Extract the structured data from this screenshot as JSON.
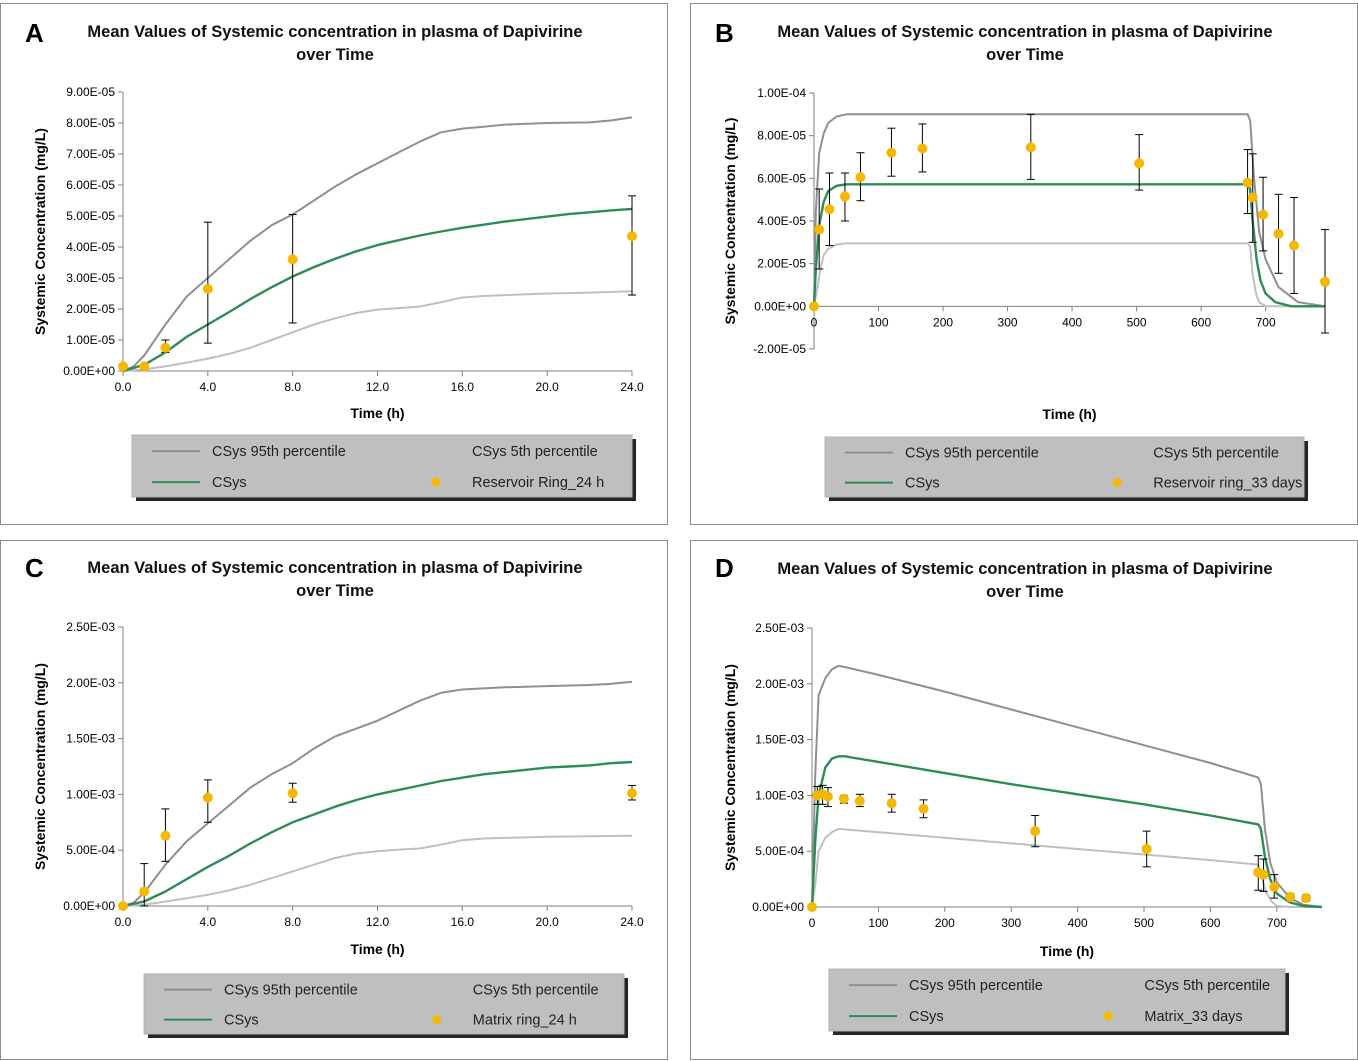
{
  "colors": {
    "p95": "#8f8f8f",
    "p5": "#bfbfbf",
    "csys": "#2e8b57",
    "obs": "#f5b800",
    "legend_bg": "#bfbfbf"
  },
  "chart_data": [
    {
      "panel": "A",
      "type": "line",
      "title": "Mean Values of Systemic concentration in plasma of Dapivirine over Time",
      "title_lines": [
        "Mean Values of Systemic concentration in plasma of Dapivirine",
        "over Time"
      ],
      "xlabel": "Time (h)",
      "ylabel": "Systemic Concentration (mg/L)",
      "xlim": [
        0,
        24
      ],
      "ylim": [
        0,
        9e-05
      ],
      "xticks": [
        0,
        4,
        8,
        12,
        16,
        20,
        24
      ],
      "xtick_labels": [
        "0.0",
        "4.0",
        "8.0",
        "12.0",
        "16.0",
        "20.0",
        "24.0"
      ],
      "yticks": [
        0,
        1e-05,
        2e-05,
        3e-05,
        4e-05,
        5e-05,
        6e-05,
        7e-05,
        8e-05,
        9e-05
      ],
      "ytick_labels": [
        "0.00E+00",
        "1.00E-05",
        "2.00E-05",
        "3.00E-05",
        "4.00E-05",
        "5.00E-05",
        "6.00E-05",
        "7.00E-05",
        "8.00E-05",
        "9.00E-05"
      ],
      "legend": [
        "CSys 95th percentile",
        "CSys 5th percentile",
        "CSys",
        "Reservoir Ring_24 h"
      ],
      "series": [
        {
          "name": "CSys 95th percentile",
          "x": [
            0,
            0.5,
            1,
            2,
            3,
            4,
            5,
            6,
            7,
            8,
            9,
            10,
            11,
            12,
            13,
            14,
            15,
            16,
            17,
            18,
            20,
            22,
            23,
            24
          ],
          "y": [
            0,
            1.5e-06,
            5e-06,
            1.5e-05,
            2.4e-05,
            3e-05,
            3.6e-05,
            4.2e-05,
            4.7e-05,
            5.05e-05,
            5.5e-05,
            5.95e-05,
            6.35e-05,
            6.7e-05,
            7.05e-05,
            7.4e-05,
            7.7e-05,
            7.82e-05,
            7.88e-05,
            7.95e-05,
            8e-05,
            8.02e-05,
            8.08e-05,
            8.18e-05
          ]
        },
        {
          "name": "CSys 5th percentile",
          "x": [
            0,
            1,
            2,
            3,
            4,
            5,
            6,
            7,
            8,
            9,
            10,
            11,
            12,
            13,
            14,
            15,
            16,
            17,
            18,
            20,
            22,
            24
          ],
          "y": [
            0,
            5e-07,
            1.5e-06,
            2.7e-06,
            4e-06,
            5.5e-06,
            7.5e-06,
            1e-05,
            1.25e-05,
            1.5e-05,
            1.7e-05,
            1.87e-05,
            1.98e-05,
            2.03e-05,
            2.08e-05,
            2.22e-05,
            2.37e-05,
            2.42e-05,
            2.45e-05,
            2.5e-05,
            2.53e-05,
            2.57e-05
          ]
        },
        {
          "name": "CSys",
          "x": [
            0,
            1,
            2,
            3,
            4,
            5,
            6,
            7,
            8,
            9,
            10,
            11,
            12,
            13,
            14,
            15,
            16,
            17,
            18,
            19,
            20,
            21,
            22,
            23,
            24
          ],
          "y": [
            0,
            2e-06,
            6e-06,
            1.1e-05,
            1.5e-05,
            1.9e-05,
            2.32e-05,
            2.7e-05,
            3.05e-05,
            3.35e-05,
            3.62e-05,
            3.86e-05,
            4.06e-05,
            4.22e-05,
            4.37e-05,
            4.5e-05,
            4.62e-05,
            4.72e-05,
            4.82e-05,
            4.9e-05,
            4.98e-05,
            5.06e-05,
            5.12e-05,
            5.18e-05,
            5.23e-05
          ]
        },
        {
          "name": "Reservoir Ring_24 h",
          "mode": "scatter",
          "x": [
            0,
            1,
            2,
            4,
            8,
            24
          ],
          "y": [
            1.5e-06,
            1.5e-06,
            7.5e-06,
            2.65e-05,
            3.6e-05,
            4.35e-05
          ],
          "err_low": [
            1.5e-06,
            1.5e-06,
            6e-06,
            9e-06,
            1.55e-05,
            2.45e-05
          ],
          "err_high": [
            1.5e-06,
            1.5e-06,
            1e-05,
            4.8e-05,
            5.05e-05,
            5.65e-05
          ]
        }
      ]
    },
    {
      "panel": "B",
      "type": "line",
      "title": "Mean Values of Systemic concentration in plasma of Dapivirine over Time",
      "title_lines": [
        "Mean Values of Systemic concentration in plasma of Dapivirine",
        "over Time"
      ],
      "xlabel": "Time (h)",
      "ylabel": "Systemic Concentration (mg/L)",
      "xlim": [
        0,
        792
      ],
      "ylim": [
        -2e-05,
        0.0001
      ],
      "xticks": [
        0,
        100,
        200,
        300,
        400,
        500,
        600,
        700
      ],
      "xtick_labels": [
        "0",
        "100",
        "200",
        "300",
        "400",
        "500",
        "600",
        "700"
      ],
      "yticks": [
        -2e-05,
        0,
        2e-05,
        4e-05,
        6e-05,
        8e-05,
        0.0001
      ],
      "ytick_labels": [
        "-2.00E-05",
        "0.00E+00",
        "2.00E-05",
        "4.00E-05",
        "6.00E-05",
        "8.00E-05",
        "1.00E-04"
      ],
      "legend": [
        "CSys 95th percentile",
        "CSys 5th percentile",
        "CSys",
        "Reservoir ring_33 days"
      ],
      "series": [
        {
          "name": "CSys 95th percentile",
          "x": [
            0,
            3,
            8,
            15,
            22,
            35,
            50,
            80,
            200,
            672,
            676,
            682,
            690,
            700,
            720,
            750,
            792
          ],
          "y": [
            0,
            4.5e-05,
            7.2e-05,
            8.1e-05,
            8.6e-05,
            8.9e-05,
            9e-05,
            9e-05,
            9e-05,
            9e-05,
            8.7e-05,
            6e-05,
            3.5e-05,
            2.2e-05,
            9e-06,
            2e-06,
            0
          ]
        },
        {
          "name": "CSys 5th percentile",
          "x": [
            0,
            5,
            10,
            15,
            22,
            35,
            50,
            100,
            672,
            676,
            680,
            685,
            690,
            700,
            792
          ],
          "y": [
            0,
            8e-06,
            1.8e-05,
            2.4e-05,
            2.7e-05,
            2.9e-05,
            2.95e-05,
            2.95e-05,
            2.95e-05,
            2.8e-05,
            1.5e-05,
            6e-06,
            2e-06,
            0,
            0
          ]
        },
        {
          "name": "CSys",
          "x": [
            0,
            3,
            8,
            15,
            22,
            35,
            50,
            80,
            200,
            672,
            676,
            680,
            686,
            692,
            700,
            715,
            740,
            792
          ],
          "y": [
            0,
            1.8e-05,
            3.8e-05,
            4.9e-05,
            5.4e-05,
            5.65e-05,
            5.72e-05,
            5.72e-05,
            5.72e-05,
            5.72e-05,
            5.5e-05,
            4e-05,
            2.2e-05,
            1.2e-05,
            6e-06,
            2e-06,
            0,
            0
          ]
        },
        {
          "name": "Reservoir ring_33 days",
          "mode": "scatter",
          "x": [
            0,
            8,
            24,
            48,
            72,
            120,
            168,
            336,
            504,
            672,
            680,
            696,
            720,
            744,
            792
          ],
          "y": [
            0,
            3.6e-05,
            4.55e-05,
            5.15e-05,
            6.05e-05,
            7.2e-05,
            7.4e-05,
            7.45e-05,
            6.7e-05,
            5.8e-05,
            5.1e-05,
            4.3e-05,
            3.4e-05,
            2.85e-05,
            1.15e-05
          ],
          "err_low": [
            0,
            1.75e-05,
            2.85e-05,
            4e-05,
            4.95e-05,
            6.1e-05,
            6.3e-05,
            5.95e-05,
            5.45e-05,
            4.35e-05,
            3e-05,
            2.6e-05,
            1.55e-05,
            6e-06,
            -1.25e-05
          ],
          "err_high": [
            0,
            5.5e-05,
            6.25e-05,
            6.25e-05,
            7.2e-05,
            8.35e-05,
            8.55e-05,
            9e-05,
            8.05e-05,
            7.35e-05,
            7.15e-05,
            6.05e-05,
            5.25e-05,
            5.1e-05,
            3.6e-05
          ]
        }
      ]
    },
    {
      "panel": "C",
      "type": "line",
      "title": "Mean Values of Systemic concentration in plasma of Dapivirine over Time",
      "title_lines": [
        "Mean Values of Systemic concentration in plasma of Dapivirine",
        "over Time"
      ],
      "xlabel": "Time (h)",
      "ylabel": "Systemic Concentration (mg/L)",
      "xlim": [
        0,
        24
      ],
      "ylim": [
        0,
        0.0025
      ],
      "xticks": [
        0,
        4,
        8,
        12,
        16,
        20,
        24
      ],
      "xtick_labels": [
        "0.0",
        "4.0",
        "8.0",
        "12.0",
        "16.0",
        "20.0",
        "24.0"
      ],
      "yticks": [
        0,
        0.0005,
        0.001,
        0.0015,
        0.002,
        0.0025
      ],
      "ytick_labels": [
        "0.00E+00",
        "5.00E-04",
        "1.00E-03",
        "1.50E-03",
        "2.00E-03",
        "2.50E-03"
      ],
      "legend": [
        "CSys 95th percentile",
        "CSys 5th percentile",
        "CSys",
        "Matrix ring_24 h"
      ],
      "series": [
        {
          "name": "CSys 95th percentile",
          "x": [
            0,
            0.5,
            1,
            2,
            3,
            4,
            5,
            6,
            7,
            8,
            9,
            10,
            11,
            12,
            13,
            14,
            15,
            16,
            17,
            18,
            20,
            22,
            23,
            24
          ],
          "y": [
            0,
            3e-05,
            0.00012,
            0.00037,
            0.00058,
            0.00074,
            0.0009,
            0.00106,
            0.00118,
            0.00128,
            0.00141,
            0.00152,
            0.00159,
            0.00166,
            0.00175,
            0.00184,
            0.00191,
            0.00194,
            0.00195,
            0.00196,
            0.00197,
            0.00198,
            0.00199,
            0.00201
          ]
        },
        {
          "name": "CSys 5th percentile",
          "x": [
            0,
            1,
            2,
            3,
            4,
            5,
            6,
            7,
            8,
            9,
            10,
            11,
            12,
            13,
            14,
            15,
            16,
            17,
            18,
            20,
            22,
            24
          ],
          "y": [
            0,
            1.2e-05,
            4e-05,
            7e-05,
            0.0001,
            0.00014,
            0.00019,
            0.00025,
            0.00031,
            0.00037,
            0.00043,
            0.00047,
            0.00049,
            0.000505,
            0.000515,
            0.00055,
            0.00059,
            0.000605,
            0.00061,
            0.00062,
            0.000625,
            0.00063
          ]
        },
        {
          "name": "CSys",
          "x": [
            0,
            1,
            2,
            3,
            4,
            5,
            6,
            7,
            8,
            9,
            10,
            11,
            12,
            13,
            14,
            15,
            16,
            17,
            18,
            19,
            20,
            21,
            22,
            23,
            24
          ],
          "y": [
            0,
            4e-05,
            0.00013,
            0.00024,
            0.00035,
            0.00045,
            0.00056,
            0.00066,
            0.00075,
            0.00082,
            0.00089,
            0.00095,
            0.001,
            0.00104,
            0.00108,
            0.00112,
            0.00115,
            0.00118,
            0.0012,
            0.00122,
            0.00124,
            0.00125,
            0.00126,
            0.00128,
            0.00129
          ]
        },
        {
          "name": "Matrix ring_24 h",
          "mode": "scatter",
          "x": [
            0,
            1,
            2,
            4,
            8,
            24
          ],
          "y": [
            0,
            0.00013,
            0.00063,
            0.00097,
            0.00101,
            0.00101
          ],
          "err_low": [
            0,
            0,
            0.0004,
            0.00075,
            0.00093,
            0.00095
          ],
          "err_high": [
            0,
            0.00038,
            0.00087,
            0.00113,
            0.0011,
            0.00108
          ]
        }
      ]
    },
    {
      "panel": "D",
      "type": "line",
      "title": "Mean Values of Systemic concentration in plasma of Dapivirine over Time",
      "title_lines": [
        "Mean Values of Systemic concentration in plasma of Dapivirine",
        "over Time"
      ],
      "xlabel": "Time (h)",
      "ylabel": "Systemic Concentration (mg/L)",
      "xlim": [
        0,
        768
      ],
      "ylim": [
        0,
        0.0025
      ],
      "xticks": [
        0,
        100,
        200,
        300,
        400,
        500,
        600,
        700
      ],
      "xtick_labels": [
        "0",
        "100",
        "200",
        "300",
        "400",
        "500",
        "600",
        "700"
      ],
      "yticks": [
        0,
        0.0005,
        0.001,
        0.0015,
        0.002,
        0.0025
      ],
      "ytick_labels": [
        "0.00E+00",
        "5.00E-04",
        "1.00E-03",
        "1.50E-03",
        "2.00E-03",
        "2.50E-03"
      ],
      "legend": [
        "CSys 95th percentile",
        "CSys 5th percentile",
        "CSys",
        "Matrix_33 days"
      ],
      "series": [
        {
          "name": "CSys 95th percentile",
          "x": [
            0,
            5,
            10,
            20,
            30,
            40,
            50,
            100,
            200,
            300,
            400,
            500,
            600,
            672,
            676,
            682,
            690,
            700,
            720,
            740,
            768
          ],
          "y": [
            0,
            0.0012,
            0.0019,
            0.00205,
            0.00213,
            0.00216,
            0.00215,
            0.00208,
            0.00193,
            0.00177,
            0.00161,
            0.00145,
            0.00129,
            0.00116,
            0.0011,
            0.0007,
            0.0004,
            0.00022,
            8e-05,
            2e-05,
            0
          ]
        },
        {
          "name": "CSys 5th percentile",
          "x": [
            0,
            5,
            10,
            20,
            30,
            40,
            60,
            100,
            200,
            300,
            400,
            500,
            600,
            672,
            678,
            684,
            692,
            700,
            720,
            768
          ],
          "y": [
            0,
            0.0002,
            0.0005,
            0.00062,
            0.00067,
            0.0007,
            0.00069,
            0.00067,
            0.00062,
            0.00057,
            0.00052,
            0.00047,
            0.00042,
            0.00038,
            0.00025,
            0.00013,
            5e-05,
            1e-05,
            0,
            0
          ]
        },
        {
          "name": "CSys",
          "x": [
            0,
            5,
            10,
            20,
            30,
            40,
            50,
            60,
            100,
            200,
            300,
            400,
            500,
            600,
            672,
            676,
            682,
            690,
            700,
            720,
            740,
            768
          ],
          "y": [
            0,
            0.0006,
            0.001,
            0.00125,
            0.00133,
            0.00135,
            0.00135,
            0.00134,
            0.0013,
            0.0012,
            0.0011,
            0.00101,
            0.00092,
            0.00082,
            0.00074,
            0.0007,
            0.00045,
            0.00025,
            0.00012,
            4e-05,
            1e-05,
            0
          ]
        },
        {
          "name": "Matrix_33 days",
          "mode": "scatter",
          "x": [
            0,
            8,
            16,
            24,
            48,
            72,
            120,
            168,
            336,
            504,
            672,
            680,
            696,
            720,
            744
          ],
          "y": [
            0,
            0.001,
            0.00101,
            0.00099,
            0.00097,
            0.00095,
            0.00093,
            0.00088,
            0.00068,
            0.00052,
            0.00031,
            0.00029,
            0.00018,
            9e-05,
            8e-05
          ],
          "err_low": [
            0,
            0.00092,
            0.00092,
            0.0009,
            0.00093,
            0.0009,
            0.00085,
            0.0008,
            0.00054,
            0.00036,
            0.00015,
            0.00014,
            8e-05,
            6e-05,
            5e-05
          ],
          "err_high": [
            0,
            0.00108,
            0.00109,
            0.00107,
            0.001,
            0.00101,
            0.00101,
            0.00096,
            0.00082,
            0.00068,
            0.00046,
            0.00043,
            0.00029,
            0.00012,
            0.00011
          ]
        }
      ]
    }
  ]
}
